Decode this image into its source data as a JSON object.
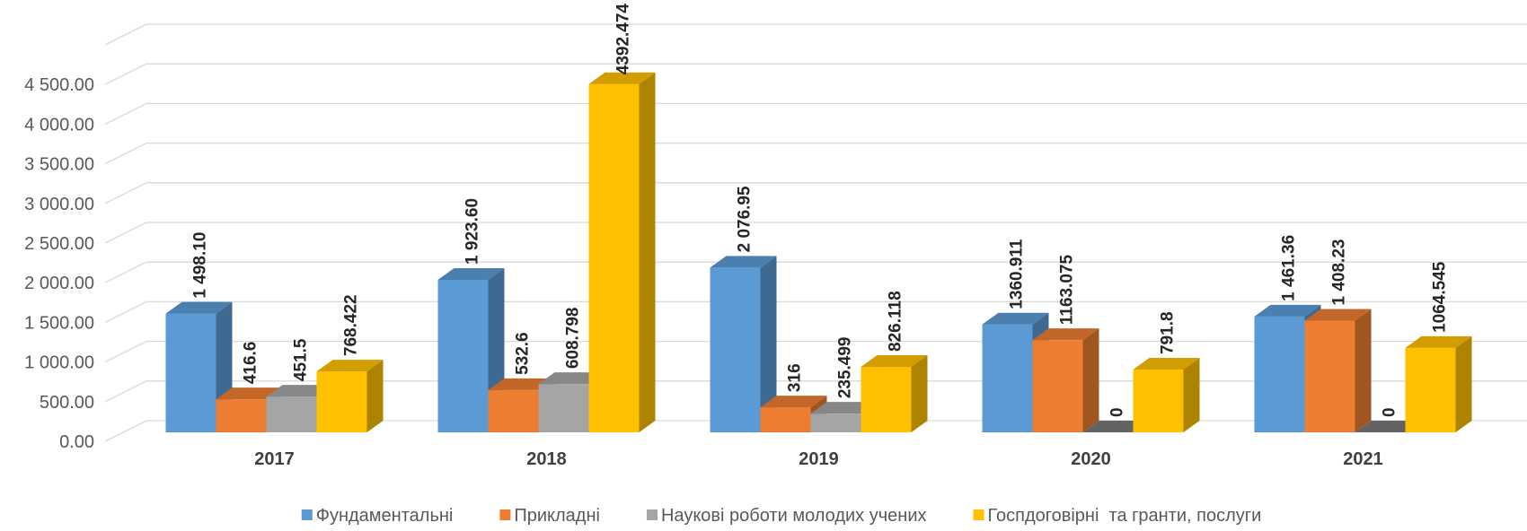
{
  "chart_data": {
    "type": "bar3d",
    "categories": [
      "2017",
      "2018",
      "2019",
      "2020",
      "2021"
    ],
    "series": [
      {
        "name": "Фундаментальні",
        "color": "#5b9bd5",
        "values": [
          1498.1,
          1923.6,
          2076.95,
          1360.911,
          1461.36
        ],
        "value_labels": [
          "1 498.10",
          "1 923.60",
          "2 076.95",
          "1360.911",
          "1 461.36"
        ]
      },
      {
        "name": "Прикладні",
        "color": "#ed7d31",
        "values": [
          416.6,
          532.6,
          316,
          1163.075,
          1408.23
        ],
        "value_labels": [
          "416.6",
          "532.6",
          "316",
          "1163.075",
          "1 408.23"
        ]
      },
      {
        "name": "Наукові роботи молодих учених",
        "color": "#a5a5a5",
        "values": [
          451.5,
          608.798,
          235.499,
          0,
          0
        ],
        "value_labels": [
          "451.5",
          "608.798",
          "235.499",
          "0",
          "0"
        ]
      },
      {
        "name": "Госпдоговірні  та гранти, послуги",
        "color": "#ffc000",
        "values": [
          768.422,
          4392.474,
          826.118,
          791.8,
          1064.545
        ],
        "value_labels": [
          "768.422",
          "4392.474",
          "826.118",
          "791.8",
          "1064.545"
        ]
      }
    ],
    "ylim": [
      0,
      5000
    ],
    "yticks": [
      {
        "value": 0,
        "label": "0.00"
      },
      {
        "value": 500,
        "label": "500.00"
      },
      {
        "value": 1000,
        "label": "1 000.00"
      },
      {
        "value": 1500,
        "label": "1 500.00"
      },
      {
        "value": 2000,
        "label": "2 000.00"
      },
      {
        "value": 2500,
        "label": "2 500.00"
      },
      {
        "value": 3000,
        "label": "3 000.00"
      },
      {
        "value": 3500,
        "label": "3 500.00"
      },
      {
        "value": 4000,
        "label": "4 000.00"
      },
      {
        "value": 4500,
        "label": "4 500.00"
      }
    ],
    "grid": true,
    "legend": "bottom"
  }
}
